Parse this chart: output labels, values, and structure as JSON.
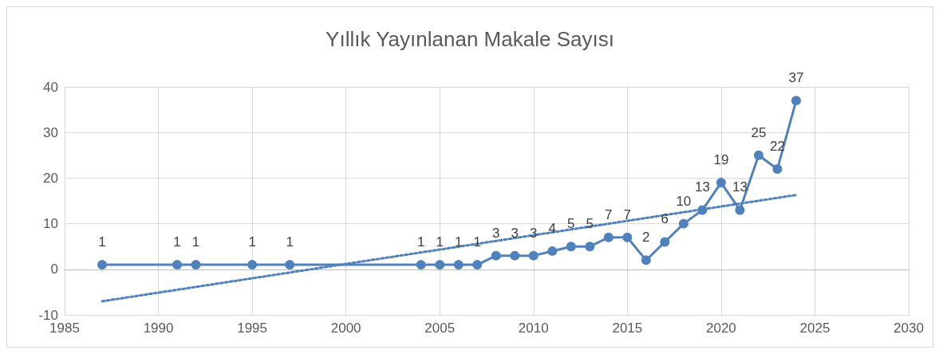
{
  "chart_data": {
    "type": "line",
    "title": "Yıllık Yayınlanan Makale Sayısı",
    "x": [
      1987,
      1991,
      1992,
      1995,
      1997,
      2004,
      2005,
      2006,
      2007,
      2008,
      2009,
      2010,
      2011,
      2012,
      2013,
      2014,
      2015,
      2016,
      2017,
      2018,
      2019,
      2020,
      2021,
      2022,
      2023,
      2024
    ],
    "series": [
      {
        "color": "#4f81bd",
        "marker": "circle",
        "line_style": "solid",
        "values": [
          1,
          1,
          1,
          1,
          1,
          1,
          1,
          1,
          1,
          3,
          3,
          3,
          4,
          5,
          5,
          7,
          7,
          2,
          6,
          10,
          13,
          19,
          13,
          25,
          22,
          37
        ],
        "value_labels": [
          "1",
          "1",
          "1",
          "1",
          "1",
          "1",
          "1",
          "1",
          "1",
          "3",
          "3",
          "3",
          "4",
          "5",
          "5",
          "7",
          "7",
          "2",
          "6",
          "10",
          "13",
          "19",
          "13",
          "25",
          "22",
          "37"
        ]
      },
      {
        "type": "line",
        "color": "#4f81bd",
        "marker": "none",
        "line_style": "dotted",
        "x": [
          1987,
          2024
        ],
        "values": [
          -7,
          16.3
        ]
      }
    ],
    "xlim": [
      1985,
      2030
    ],
    "xticks": [
      1985,
      1990,
      1995,
      2000,
      2005,
      2010,
      2015,
      2020,
      2025,
      2030
    ],
    "ylim": [
      -10,
      40
    ],
    "yticks": [
      -10,
      0,
      10,
      20,
      30,
      40
    ],
    "grid": true
  }
}
